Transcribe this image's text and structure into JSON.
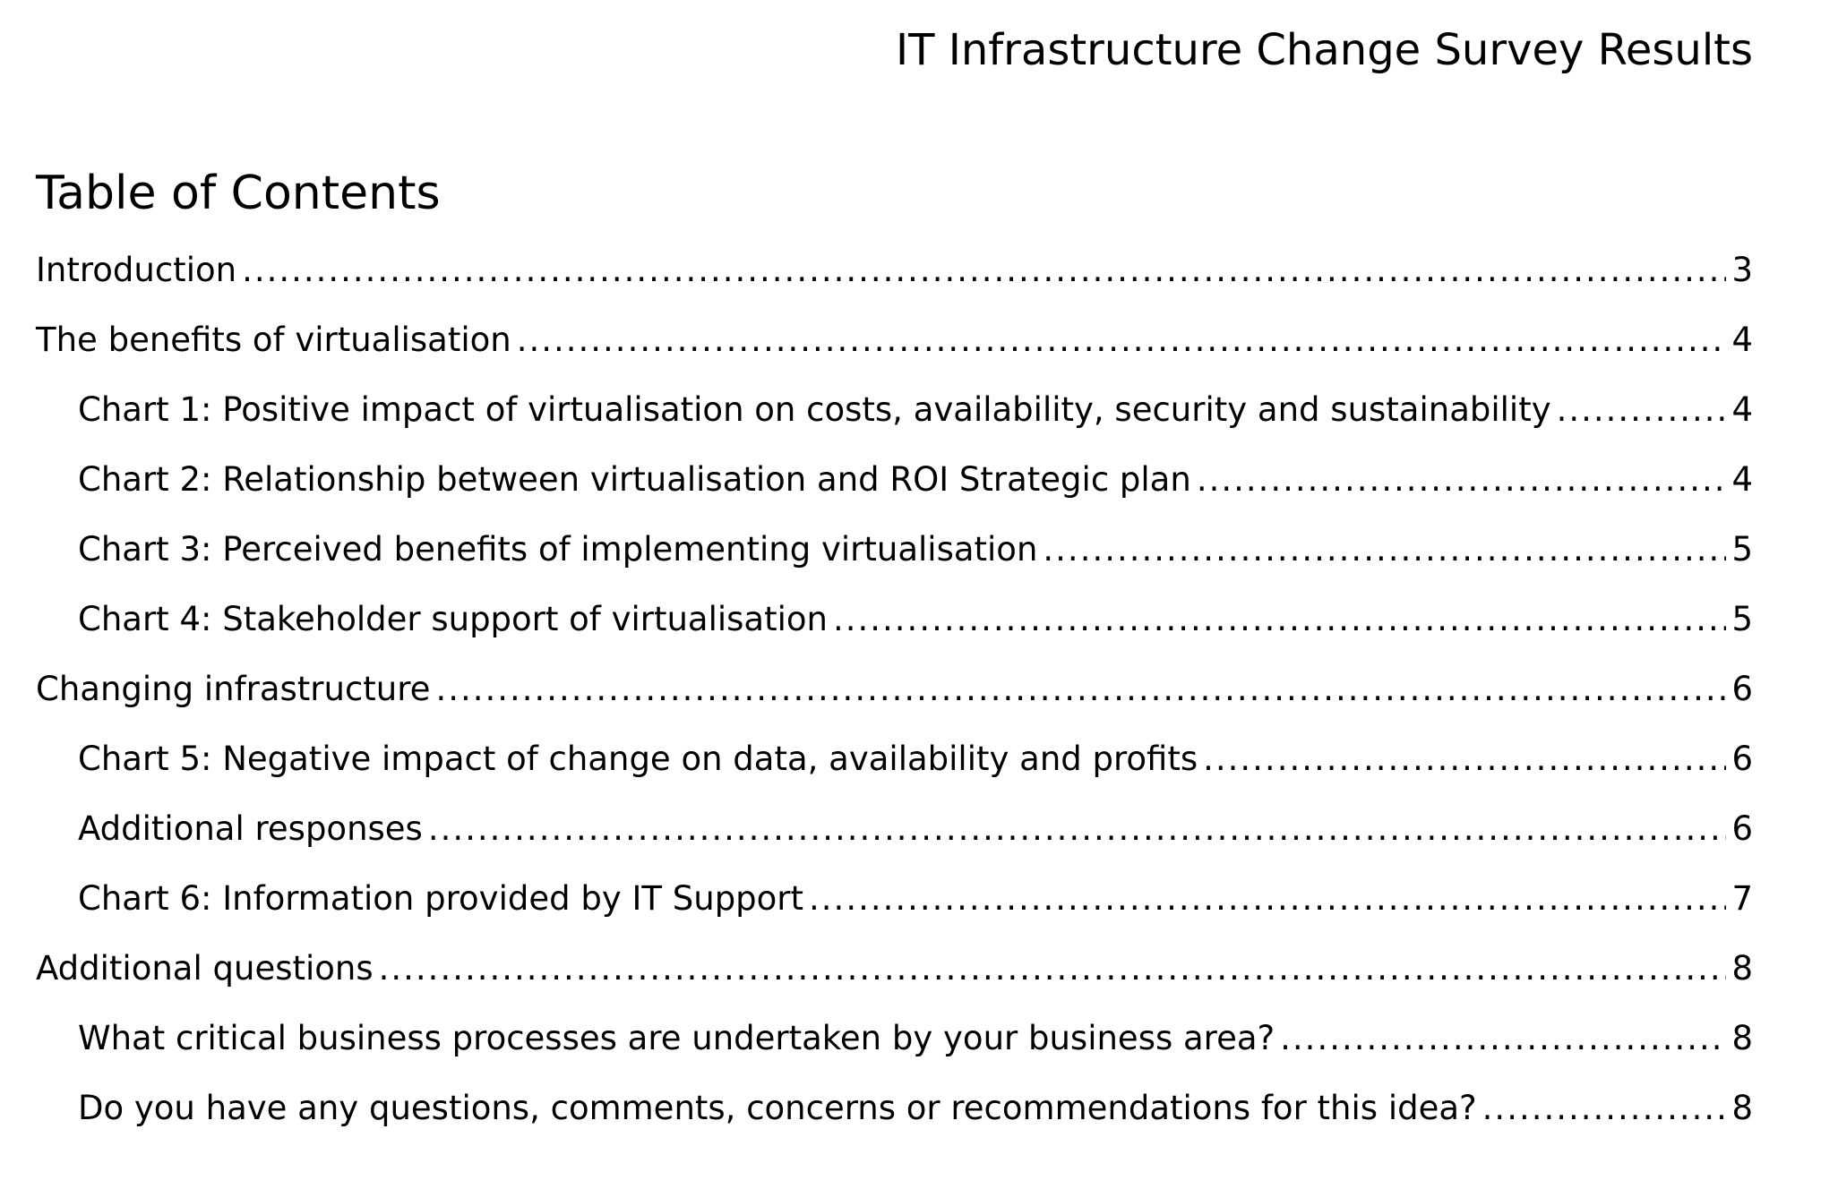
{
  "document": {
    "title": "IT Infrastructure Change Survey Results"
  },
  "toc": {
    "heading": "Table of Contents",
    "entries": [
      {
        "label": "Introduction",
        "page": "3",
        "level": 1
      },
      {
        "label": "The benefits of virtualisation",
        "page": "4",
        "level": 1
      },
      {
        "label": "Chart 1: Positive impact of virtualisation on costs, availability, security and sustainability",
        "page": "4",
        "level": 2
      },
      {
        "label": "Chart 2: Relationship between virtualisation and ROI Strategic plan",
        "page": "4",
        "level": 2
      },
      {
        "label": "Chart 3: Perceived benefits of implementing virtualisation",
        "page": "5",
        "level": 2
      },
      {
        "label": "Chart 4: Stakeholder support of virtualisation",
        "page": "5",
        "level": 2
      },
      {
        "label": "Changing infrastructure",
        "page": "6",
        "level": 1
      },
      {
        "label": "Chart 5: Negative impact of change on data, availability and profits",
        "page": "6",
        "level": 2
      },
      {
        "label": "Additional responses",
        "page": "6",
        "level": 2
      },
      {
        "label": "Chart 6: Information provided by IT Support",
        "page": "7",
        "level": 2
      },
      {
        "label": "Additional questions",
        "page": "8",
        "level": 1
      },
      {
        "label": "What critical business processes are undertaken by your business area?",
        "page": "8",
        "level": 2
      },
      {
        "label": "Do you have any questions, comments, concerns or recommendations for this idea?",
        "page": "8",
        "level": 2
      }
    ]
  }
}
